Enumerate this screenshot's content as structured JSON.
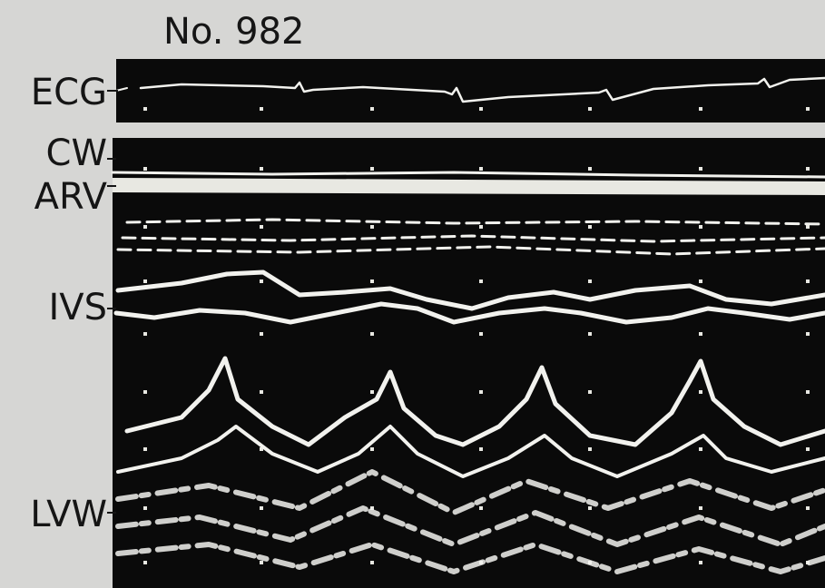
{
  "header": {
    "title": "No. 982"
  },
  "labels": [
    "ECG",
    "CW",
    "ARV",
    "IVS",
    "LVW"
  ]
}
